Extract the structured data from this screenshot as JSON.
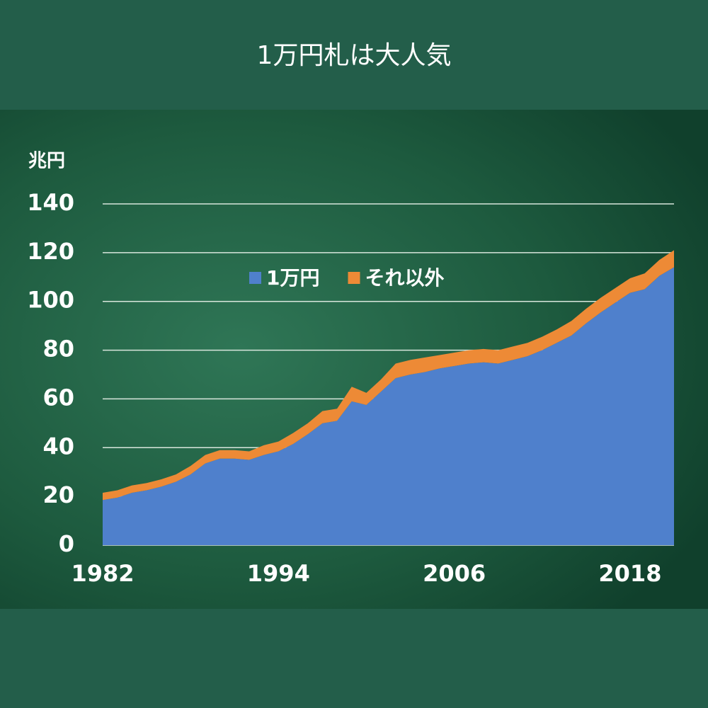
{
  "chart_data": {
    "type": "stacked-area",
    "title": "1万円札は大人気",
    "y_label": "兆円",
    "x": [
      1982,
      1983,
      1984,
      1985,
      1986,
      1987,
      1988,
      1989,
      1990,
      1991,
      1992,
      1993,
      1994,
      1995,
      1996,
      1997,
      1998,
      1999,
      2000,
      2001,
      2002,
      2003,
      2004,
      2005,
      2006,
      2007,
      2008,
      2009,
      2010,
      2011,
      2012,
      2013,
      2014,
      2015,
      2016,
      2017,
      2018,
      2019,
      2020,
      2021
    ],
    "series": [
      {
        "name": "1万円",
        "color": "#4f80cc",
        "values": [
          18.5,
          19.5,
          21.5,
          22.5,
          24,
          26,
          29,
          33.5,
          35.5,
          35.5,
          35,
          37,
          38.5,
          41.5,
          45.5,
          50,
          51,
          59,
          57.5,
          63,
          68.5,
          70,
          71,
          72.5,
          73.5,
          74.5,
          75,
          74.5,
          76,
          77.5,
          80,
          83,
          86,
          91,
          95.5,
          99.5,
          103.5,
          105,
          110.5,
          114
        ]
      },
      {
        "name": "それ以外",
        "color": "#ed8a36",
        "values": [
          3,
          3,
          3,
          3,
          3,
          3,
          3.5,
          3.5,
          3.5,
          3.5,
          3.5,
          4,
          4,
          4.5,
          4.5,
          5,
          5,
          6,
          5,
          5,
          6,
          6,
          6,
          5.5,
          5.5,
          5.5,
          5.5,
          5.5,
          5.5,
          5.5,
          5.5,
          5.5,
          6,
          6,
          6,
          6,
          6,
          6.5,
          6.5,
          7
        ]
      }
    ],
    "xlim": [
      1982,
      2021
    ],
    "xticks": [
      1982,
      1994,
      2006,
      2018
    ],
    "ylim": [
      0,
      140
    ],
    "yticks": [
      0,
      20,
      40,
      60,
      80,
      100,
      120,
      140
    ],
    "grid": true,
    "legend": "top"
  }
}
